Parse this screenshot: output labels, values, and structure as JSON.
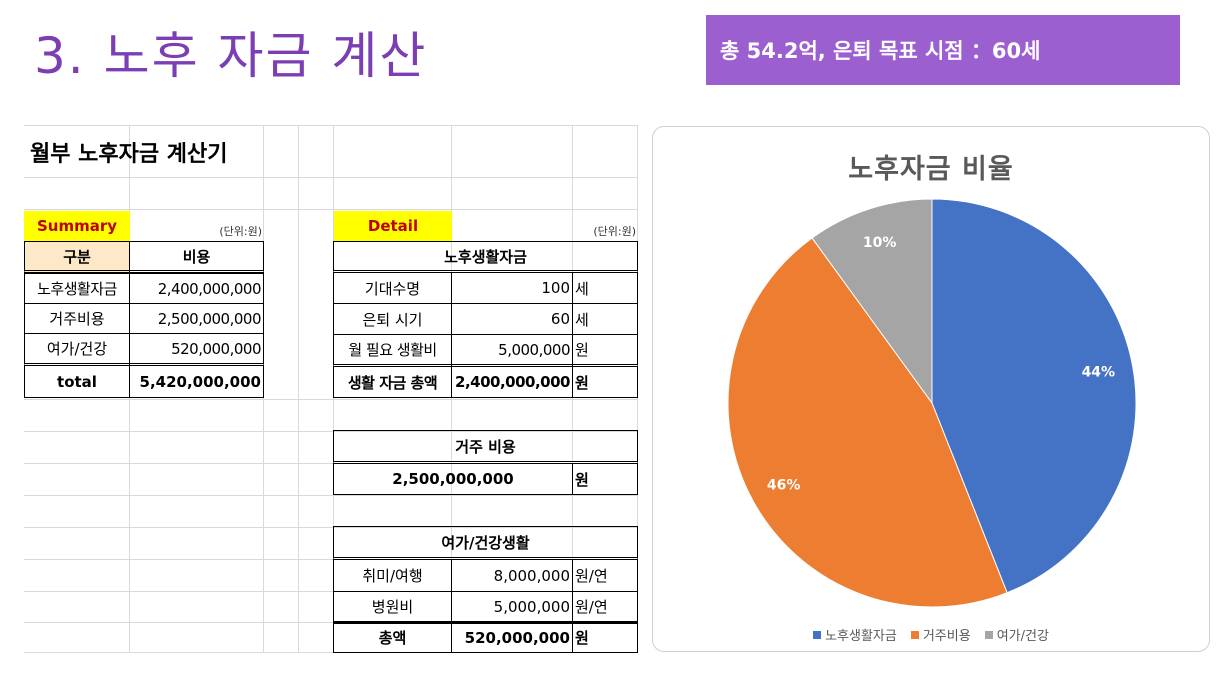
{
  "slide": {
    "title": "3. 노후 자금 계산",
    "banner": "총 54.2억, 은퇴 목표 시점 ：60세"
  },
  "sheet": {
    "heading": "월부 노후자금 계산기",
    "unit": "(단위:원)",
    "summary": {
      "label": "Summary",
      "col_category": "구분",
      "col_cost": "비용",
      "rows": [
        {
          "name": "노후생활자금",
          "value": "2,400,000,000"
        },
        {
          "name": "거주비용",
          "value": "2,500,000,000"
        },
        {
          "name": "여가/건강",
          "value": "520,000,000"
        }
      ],
      "total_label": "total",
      "total_value": "5,420,000,000"
    },
    "detail": {
      "label": "Detail",
      "living": {
        "title": "노후생활자금",
        "rows": [
          {
            "name": "기대수명",
            "value": "100",
            "unit": "세"
          },
          {
            "name": "은퇴 시기",
            "value": "60",
            "unit": "세"
          },
          {
            "name": "월 필요 생활비",
            "value": "5,000,000",
            "unit": "원"
          }
        ],
        "total": {
          "name": "생활 자금 총액",
          "value": "2,400,000,000",
          "unit": "원"
        }
      },
      "housing": {
        "title": "거주 비용",
        "value": "2,500,000,000",
        "unit": "원"
      },
      "leisure": {
        "title": "여가/건강생활",
        "rows": [
          {
            "name": "취미/여행",
            "value": "8,000,000",
            "unit": "원/연"
          },
          {
            "name": "병원비",
            "value": "5,000,000",
            "unit": "원/연"
          }
        ],
        "total": {
          "name": "총액",
          "value": "520,000,000",
          "unit": "원"
        }
      }
    }
  },
  "chart_data": {
    "type": "pie",
    "title": "노후자금 비율",
    "categories": [
      "노후생활자금",
      "거주비용",
      "여가/건강"
    ],
    "values": [
      44,
      46,
      10
    ],
    "labels": [
      "44%",
      "46%",
      "10%"
    ],
    "colors": [
      "#4472c4",
      "#ed7d31",
      "#a5a5a5"
    ],
    "legend": "bottom"
  }
}
